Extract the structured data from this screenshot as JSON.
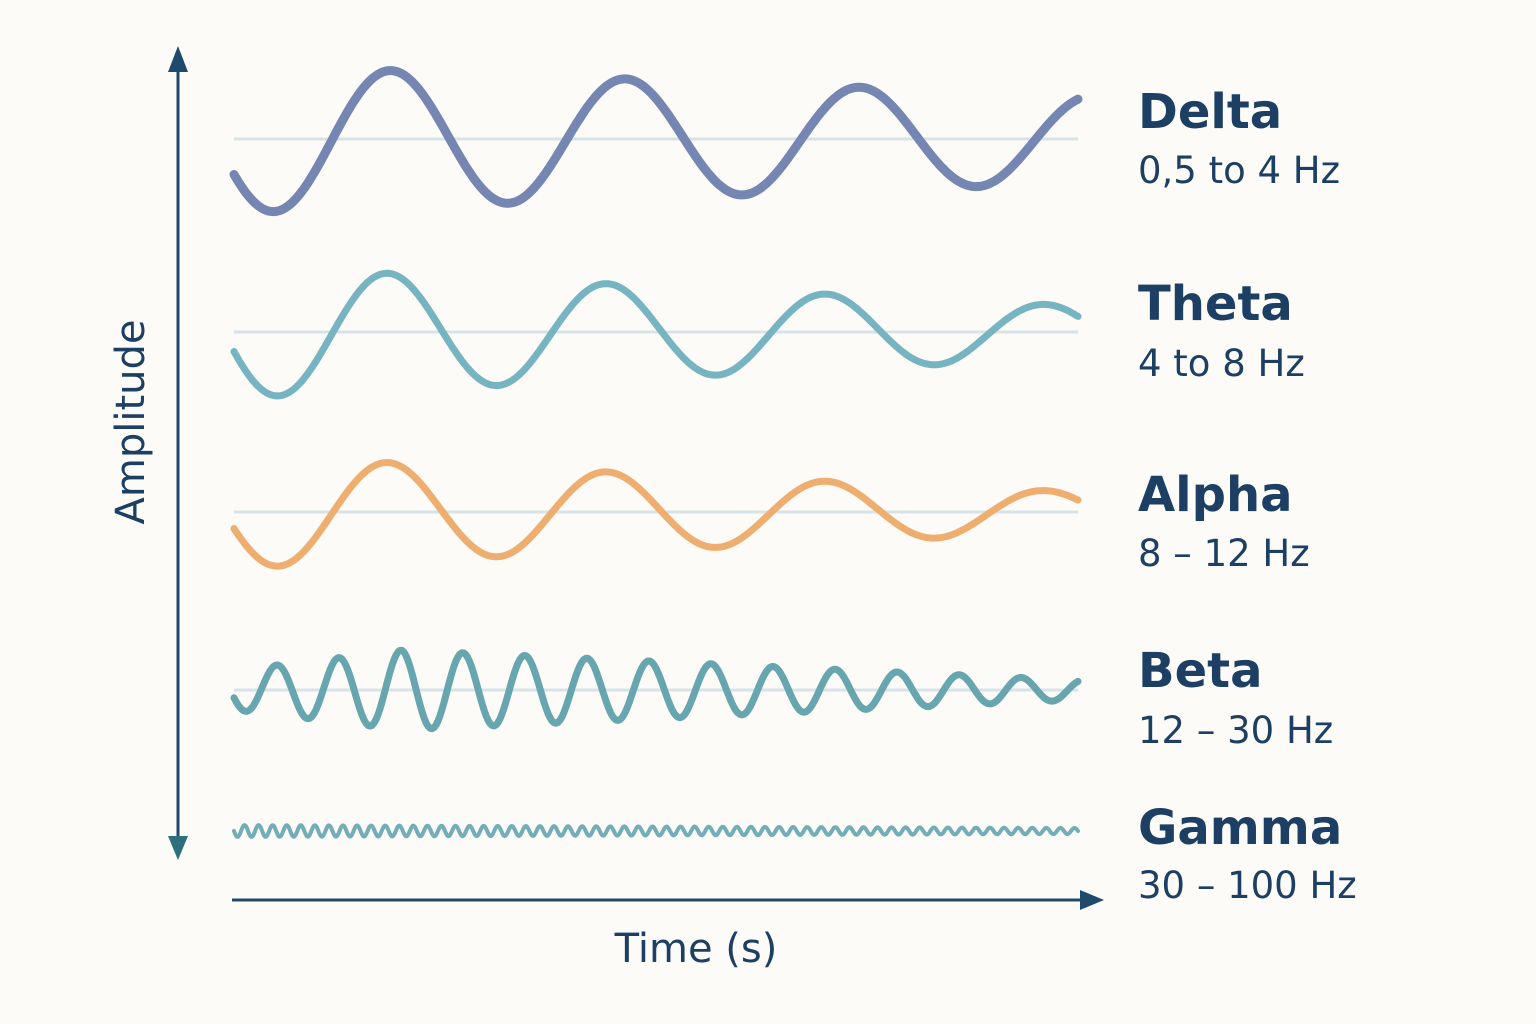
{
  "axes": {
    "y_label": "Amplitude",
    "x_label": "Time (s)"
  },
  "bands": [
    {
      "name": "Delta",
      "range": "0,5 to 4 Hz",
      "color": "#7586b3"
    },
    {
      "name": "Theta",
      "range": "4 to 8 Hz",
      "color": "#77b4c2"
    },
    {
      "name": "Alpha",
      "range": "8 – 12 Hz",
      "color": "#eeae6f"
    },
    {
      "name": "Beta",
      "range": "12 – 30 Hz",
      "color": "#67a6af"
    },
    {
      "name": "Gamma",
      "range": "30 – 100 Hz",
      "color": "#72adb8"
    }
  ],
  "colors": {
    "axis": "#1f4a6e",
    "text": "#1c3f63",
    "baseline": "#d7e3e8",
    "background": "#fcfbf7"
  }
}
